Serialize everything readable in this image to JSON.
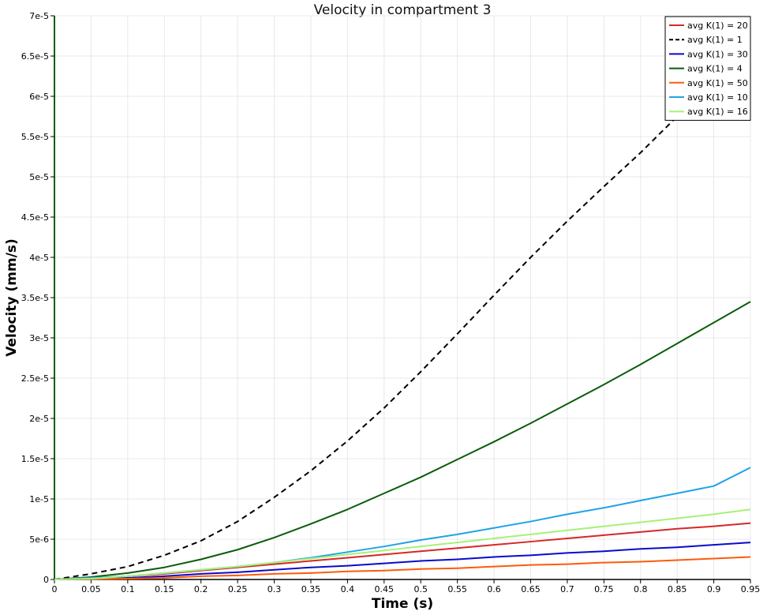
{
  "chart_data": {
    "type": "line",
    "title": "Velocity in compartment 3",
    "xlabel": "Time (s)",
    "ylabel": "Velocity (mm/s)",
    "xlim": [
      0,
      0.95
    ],
    "ylim": [
      0,
      7e-05
    ],
    "grid": true,
    "legend_position": "top-right",
    "x_ticks": [
      "0",
      "0.05",
      "0.1",
      "0.15",
      "0.2",
      "0.25",
      "0.3",
      "0.35",
      "0.4",
      "0.45",
      "0.5",
      "0.55",
      "0.6",
      "0.65",
      "0.7",
      "0.75",
      "0.8",
      "0.85",
      "0.9",
      "0.95"
    ],
    "y_ticks": [
      "0",
      "5e-6",
      "1e-5",
      "1.5e-5",
      "2e-5",
      "2.5e-5",
      "3e-5",
      "3.5e-5",
      "4e-5",
      "4.5e-5",
      "5e-5",
      "5.5e-5",
      "6e-5",
      "6.5e-5",
      "7e-5"
    ],
    "x": [
      0.0,
      0.05,
      0.1,
      0.15,
      0.2,
      0.25,
      0.3,
      0.35,
      0.4,
      0.45,
      0.5,
      0.55,
      0.6,
      0.65,
      0.7,
      0.75,
      0.8,
      0.85,
      0.9,
      0.95
    ],
    "series": [
      {
        "name": "avg K(1) = 20",
        "color": "#d62728",
        "dash": false,
        "values": [
          0,
          1e-07,
          4e-07,
          7e-07,
          1.1e-06,
          1.5e-06,
          1.9e-06,
          2.3e-06,
          2.7e-06,
          3.1e-06,
          3.5e-06,
          3.9e-06,
          4.3e-06,
          4.7e-06,
          5.1e-06,
          5.5e-06,
          5.9e-06,
          6.3e-06,
          6.6e-06,
          7e-06
        ]
      },
      {
        "name": "avg K(1) = 1",
        "color": "#000000",
        "dash": true,
        "values": [
          0,
          7e-07,
          1.6e-06,
          3e-06,
          4.8e-06,
          7.2e-06,
          1.02e-05,
          1.35e-05,
          1.72e-05,
          2.13e-05,
          2.58e-05,
          3.05e-05,
          3.53e-05,
          4e-05,
          4.45e-05,
          4.88e-05,
          5.3e-05,
          5.75e-05,
          6.17e-05,
          6.6e-05
        ]
      },
      {
        "name": "avg K(1) = 30",
        "color": "#0a0acc",
        "dash": false,
        "values": [
          0,
          1e-07,
          2e-07,
          4e-07,
          7e-07,
          9e-07,
          1.2e-06,
          1.5e-06,
          1.7e-06,
          2e-06,
          2.3e-06,
          2.5e-06,
          2.8e-06,
          3e-06,
          3.3e-06,
          3.5e-06,
          3.8e-06,
          4e-06,
          4.3e-06,
          4.6e-06
        ]
      },
      {
        "name": "avg K(1) = 4",
        "color": "#0a5c0a",
        "dash": false,
        "values": [
          0,
          3e-07,
          8e-07,
          1.5e-06,
          2.5e-06,
          3.7e-06,
          5.2e-06,
          6.9e-06,
          8.7e-06,
          1.07e-05,
          1.27e-05,
          1.49e-05,
          1.71e-05,
          1.94e-05,
          2.18e-05,
          2.42e-05,
          2.67e-05,
          2.93e-05,
          3.19e-05,
          3.45e-05
        ]
      },
      {
        "name": "avg K(1) = 50",
        "color": "#ff5a0a",
        "dash": false,
        "values": [
          0,
          5e-08,
          1e-07,
          2e-07,
          4e-07,
          5e-07,
          7e-07,
          8e-07,
          1e-06,
          1.1e-06,
          1.3e-06,
          1.4e-06,
          1.6e-06,
          1.8e-06,
          1.9e-06,
          2.1e-06,
          2.2e-06,
          2.4e-06,
          2.6e-06,
          2.8e-06
        ]
      },
      {
        "name": "avg K(1) = 10",
        "color": "#1fa3e6",
        "dash": false,
        "values": [
          0,
          2e-07,
          4e-07,
          8e-07,
          1.2e-06,
          1.6e-06,
          2.1e-06,
          2.7e-06,
          3.4e-06,
          4.1e-06,
          4.9e-06,
          5.6e-06,
          6.4e-06,
          7.2e-06,
          8.1e-06,
          8.9e-06,
          9.8e-06,
          1.07e-05,
          1.16e-05,
          1.39e-05
        ]
      },
      {
        "name": "avg K(1) = 16",
        "color": "#a8f07a",
        "dash": false,
        "values": [
          0,
          1e-07,
          4e-07,
          8e-07,
          1.2e-06,
          1.6e-06,
          2.1e-06,
          2.6e-06,
          3.1e-06,
          3.6e-06,
          4.1e-06,
          4.6e-06,
          5.1e-06,
          5.6e-06,
          6.1e-06,
          6.6e-06,
          7.1e-06,
          7.6e-06,
          8.1e-06,
          8.7e-06
        ]
      }
    ]
  }
}
